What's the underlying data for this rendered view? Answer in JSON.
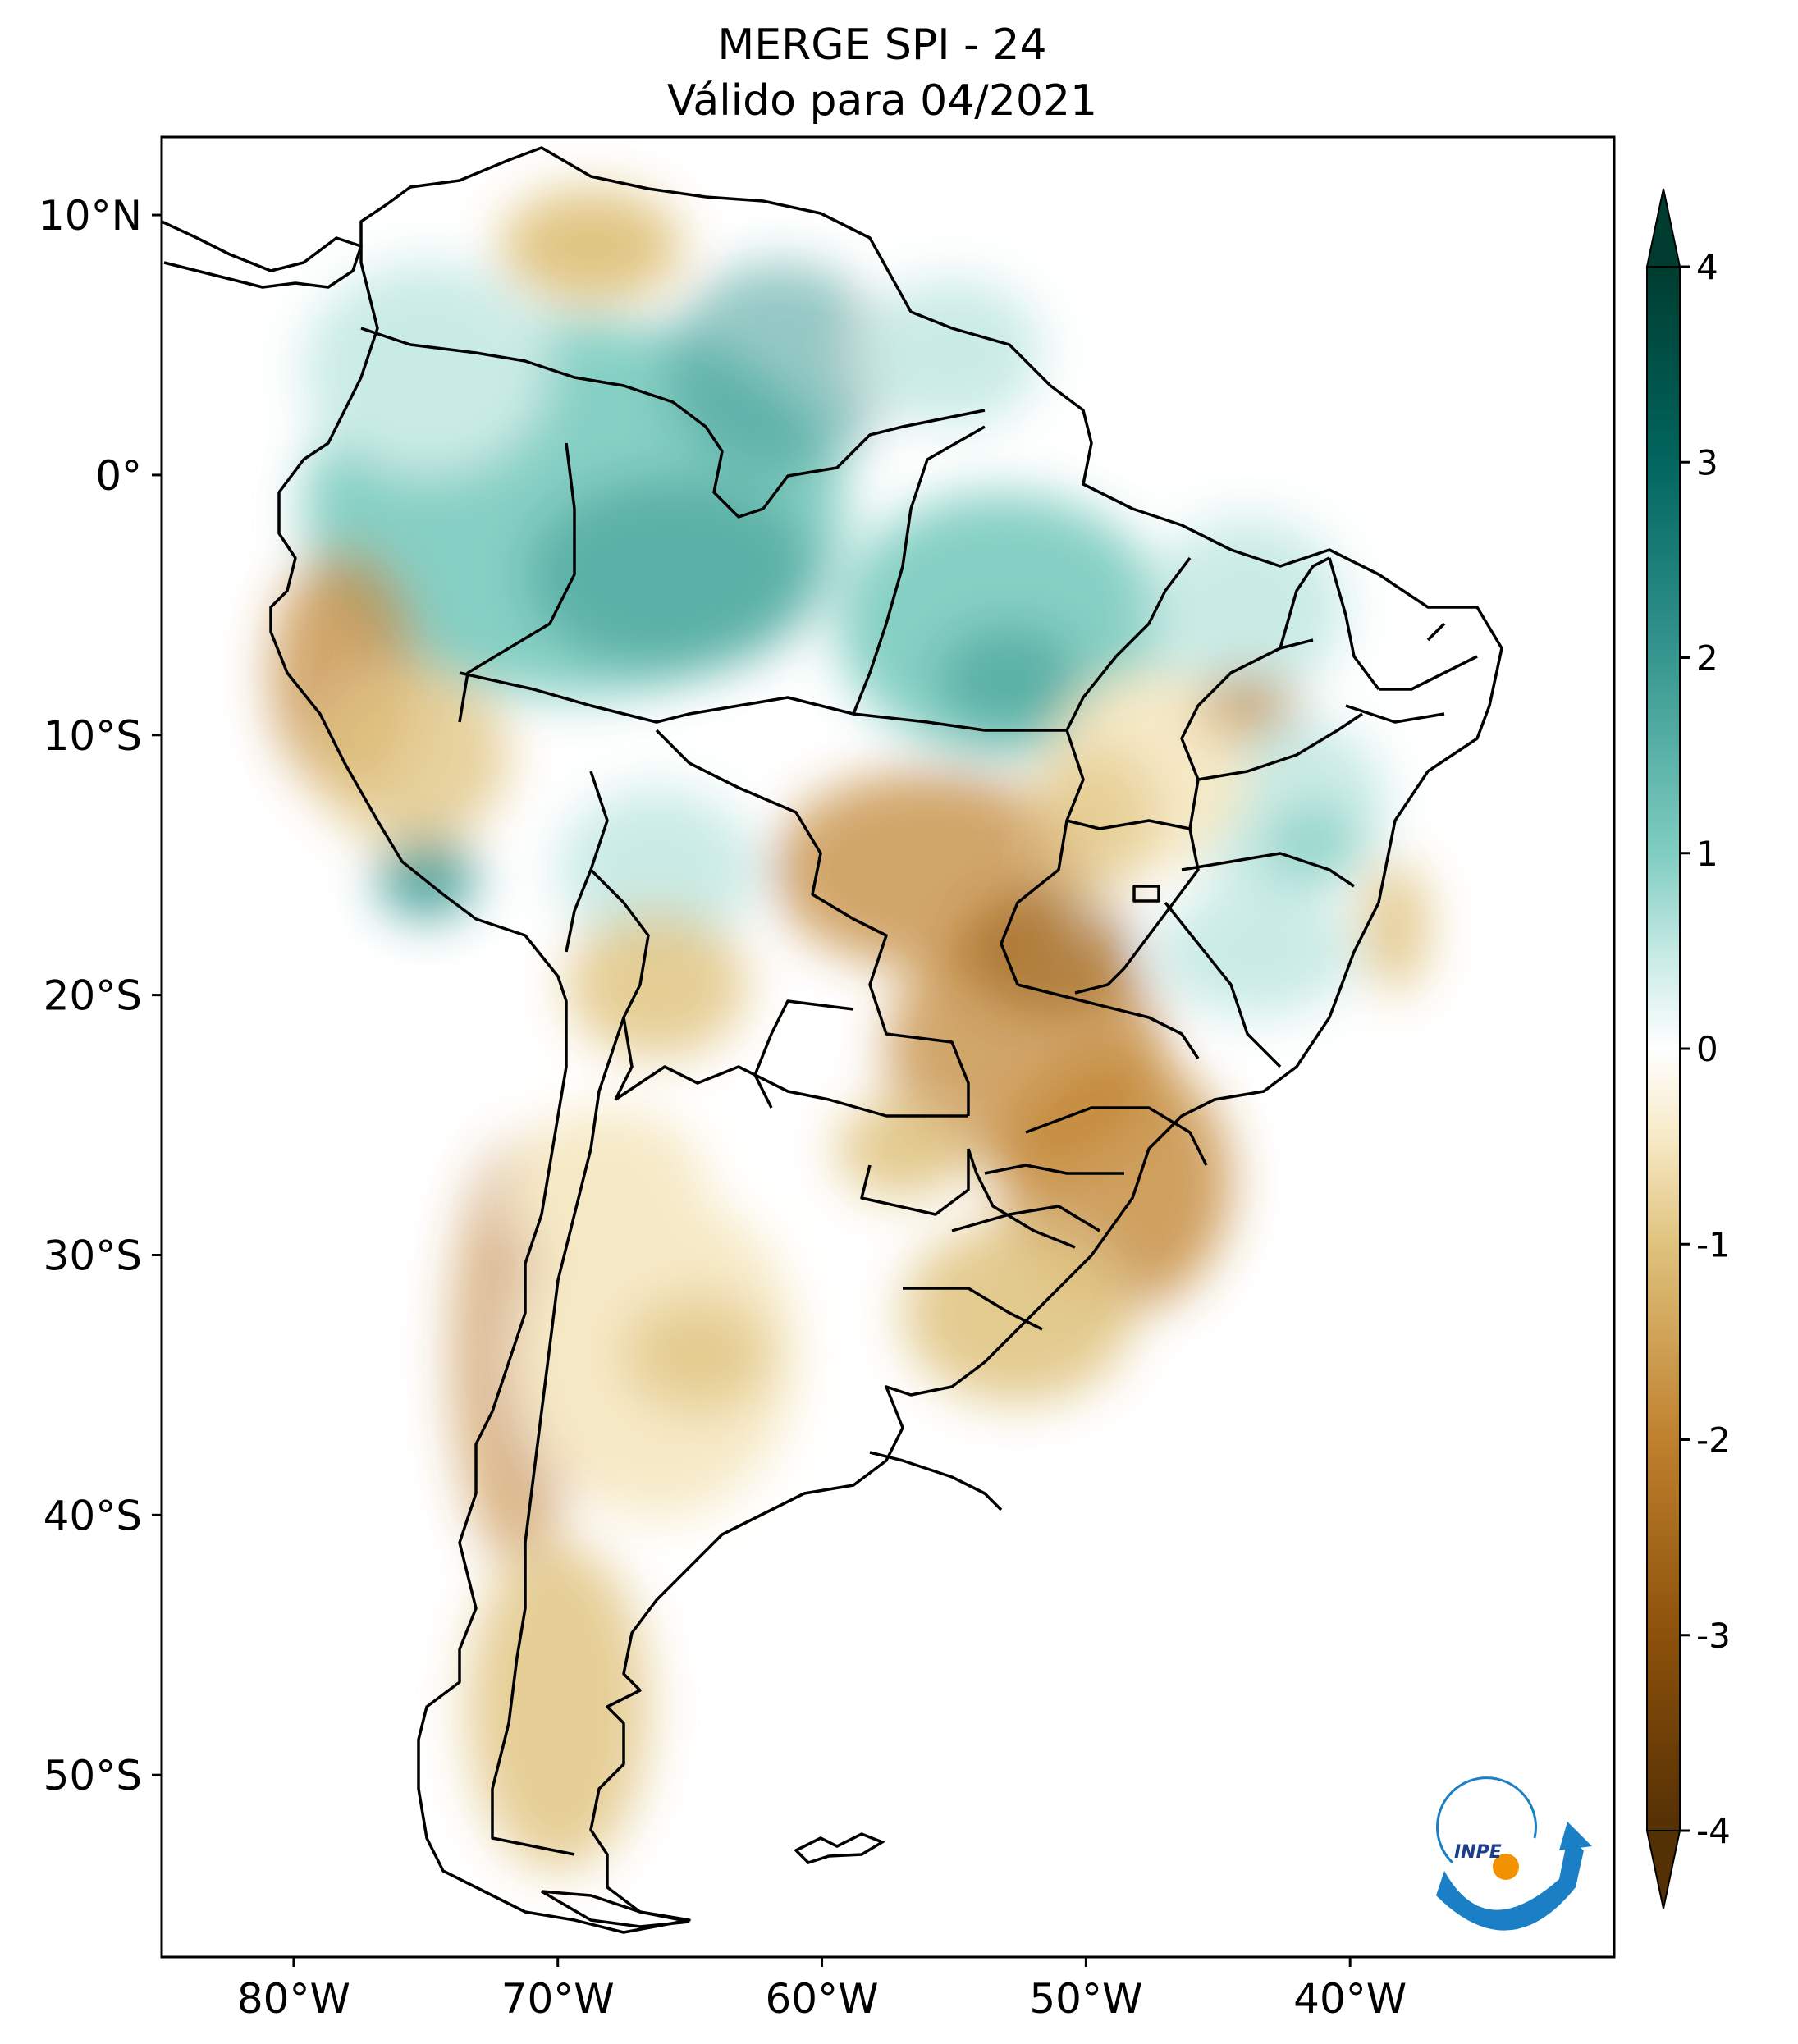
{
  "title": {
    "line1": "MERGE   SPI - 24",
    "line2": "Válido para 04/2021"
  },
  "map": {
    "lon_range": [
      -85,
      -30
    ],
    "lat_range": [
      -57,
      13
    ],
    "lon_ticks": [
      {
        "value": -80,
        "label": "80°W"
      },
      {
        "value": -70,
        "label": "70°W"
      },
      {
        "value": -60,
        "label": "60°W"
      },
      {
        "value": -50,
        "label": "50°W"
      },
      {
        "value": -40,
        "label": "40°W"
      }
    ],
    "lat_ticks": [
      {
        "value": 10,
        "label": "10°N"
      },
      {
        "value": 0,
        "label": "0°"
      },
      {
        "value": -10,
        "label": "10°S"
      },
      {
        "value": -20,
        "label": "20°S"
      },
      {
        "value": -30,
        "label": "30°S"
      },
      {
        "value": -40,
        "label": "40°S"
      },
      {
        "value": -50,
        "label": "50°S"
      }
    ]
  },
  "colorbar": {
    "min": -4,
    "max": 4,
    "extend": "both",
    "ticks": [
      {
        "value": 4,
        "label": "4"
      },
      {
        "value": 3,
        "label": "3"
      },
      {
        "value": 2,
        "label": "2"
      },
      {
        "value": 1,
        "label": "1"
      },
      {
        "value": 0,
        "label": "0"
      },
      {
        "value": -1,
        "label": "-1"
      },
      {
        "value": -2,
        "label": "-2"
      },
      {
        "value": -3,
        "label": "-3"
      },
      {
        "value": -4,
        "label": "-4"
      }
    ],
    "colors": {
      "max": "#003c30",
      "high": "#01665e",
      "mid_high": "#35978f",
      "low_pos": "#80cdc1",
      "faint_pos": "#c7eae5",
      "zero": "#ffffff",
      "faint_neg": "#f6e8c3",
      "low_neg": "#dfc27d",
      "mid_low": "#bf812d",
      "low": "#8c510a",
      "min": "#543005"
    }
  },
  "logo": {
    "text": "INPE",
    "blue": "#1a7fc4",
    "orange": "#f39200"
  }
}
